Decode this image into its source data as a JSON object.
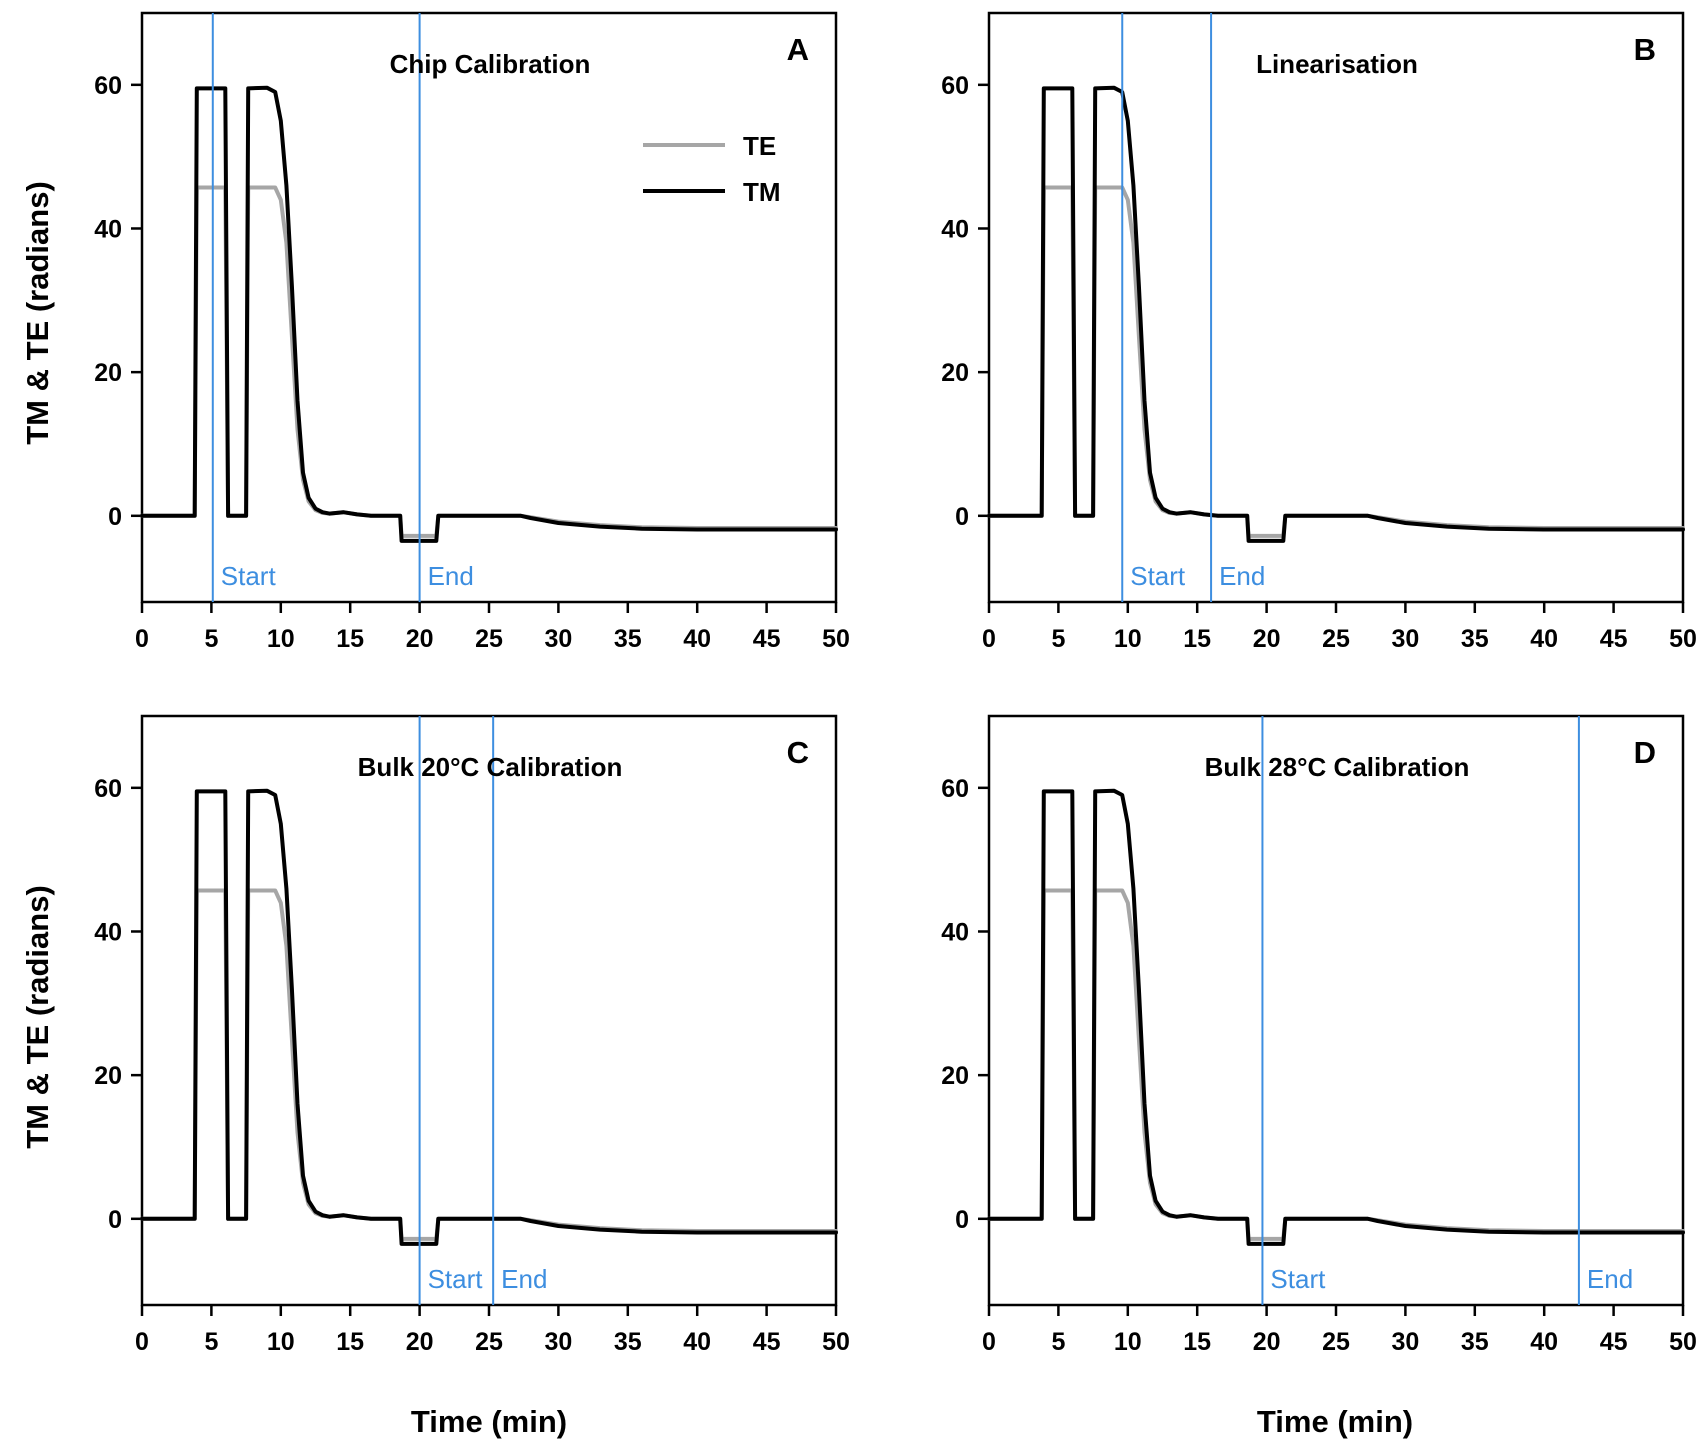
{
  "figure": {
    "ylabel": "TM & TE (radians)",
    "xlabel": "Time (min)"
  },
  "colors": {
    "TE": "#a6a6a6",
    "TM": "#000000",
    "marker": "#3d8ee0",
    "axis": "#000000"
  },
  "legend": {
    "items": [
      {
        "label": "TE",
        "color": "#a6a6a6"
      },
      {
        "label": "TM",
        "color": "#000000"
      }
    ],
    "placement": "upper-right of panel A"
  },
  "chart_data": [
    {
      "type": "line",
      "panel": "A",
      "title": "Chip Calibration",
      "xlim": [
        0,
        50
      ],
      "ylim": [
        -12,
        70
      ],
      "xticks": [
        0,
        5,
        10,
        15,
        20,
        25,
        30,
        35,
        40,
        45,
        50
      ],
      "yticks": [
        0,
        20,
        40,
        60
      ],
      "markers": [
        {
          "label": "Start",
          "x": 5.1
        },
        {
          "label": "End",
          "x": 20.0
        }
      ]
    },
    {
      "type": "line",
      "panel": "B",
      "title": "Linearisation",
      "xlim": [
        0,
        50
      ],
      "ylim": [
        -12,
        70
      ],
      "xticks": [
        0,
        5,
        10,
        15,
        20,
        25,
        30,
        35,
        40,
        45,
        50
      ],
      "yticks": [
        0,
        20,
        40,
        60
      ],
      "markers": [
        {
          "label": "Start",
          "x": 9.6
        },
        {
          "label": "End",
          "x": 16.0
        }
      ]
    },
    {
      "type": "line",
      "panel": "C",
      "title": "Bulk 20°C Calibration",
      "xlim": [
        0,
        50
      ],
      "ylim": [
        -12,
        70
      ],
      "xticks": [
        0,
        5,
        10,
        15,
        20,
        25,
        30,
        35,
        40,
        45,
        50
      ],
      "yticks": [
        0,
        20,
        40,
        60
      ],
      "markers": [
        {
          "label": "Start",
          "x": 20.0
        },
        {
          "label": "End",
          "x": 25.3
        }
      ]
    },
    {
      "type": "line",
      "panel": "D",
      "title": "Bulk 28°C Calibration",
      "xlim": [
        0,
        50
      ],
      "ylim": [
        -12,
        70
      ],
      "xticks": [
        0,
        5,
        10,
        15,
        20,
        25,
        30,
        35,
        40,
        45,
        50
      ],
      "yticks": [
        0,
        20,
        40,
        60
      ],
      "markers": [
        {
          "label": "Start",
          "x": 19.7
        },
        {
          "label": "End",
          "x": 42.5
        }
      ]
    }
  ],
  "series": [
    {
      "name": "TE",
      "x": [
        0,
        3.8,
        3.95,
        6.0,
        6.2,
        7.5,
        7.65,
        9.6,
        10.0,
        10.4,
        10.8,
        11.2,
        11.6,
        12.0,
        12.5,
        13.0,
        13.5,
        14.5,
        15.5,
        16.5,
        18.6,
        18.7,
        21.2,
        21.35,
        27.3,
        28.0,
        30.0,
        33.0,
        36.0,
        40.0,
        45.0,
        50.0
      ],
      "y": [
        0,
        0,
        45.7,
        45.7,
        0,
        0,
        45.7,
        45.7,
        44.0,
        38.0,
        25.0,
        12.0,
        5.0,
        2.0,
        0.8,
        0.4,
        0.3,
        0.5,
        0.2,
        0,
        0,
        -2.8,
        -2.8,
        0,
        0,
        -0.2,
        -0.8,
        -1.3,
        -1.6,
        -1.7,
        -1.7,
        -1.7
      ]
    },
    {
      "name": "TM",
      "x": [
        0,
        3.8,
        3.95,
        6.0,
        6.2,
        7.5,
        7.65,
        9.0,
        9.6,
        10.0,
        10.4,
        10.8,
        11.2,
        11.6,
        12.0,
        12.5,
        13.0,
        13.5,
        14.5,
        15.5,
        16.5,
        18.6,
        18.7,
        21.2,
        21.35,
        27.3,
        28.0,
        30.0,
        33.0,
        36.0,
        40.0,
        45.0,
        50.0
      ],
      "y": [
        0,
        0,
        59.5,
        59.5,
        0,
        0,
        59.5,
        59.6,
        59.0,
        55.0,
        46.0,
        32.0,
        16.0,
        6.0,
        2.5,
        1.0,
        0.5,
        0.3,
        0.5,
        0.2,
        0,
        0,
        -3.5,
        -3.5,
        0,
        0,
        -0.3,
        -1.0,
        -1.5,
        -1.8,
        -1.9,
        -1.9,
        -1.9
      ]
    }
  ]
}
